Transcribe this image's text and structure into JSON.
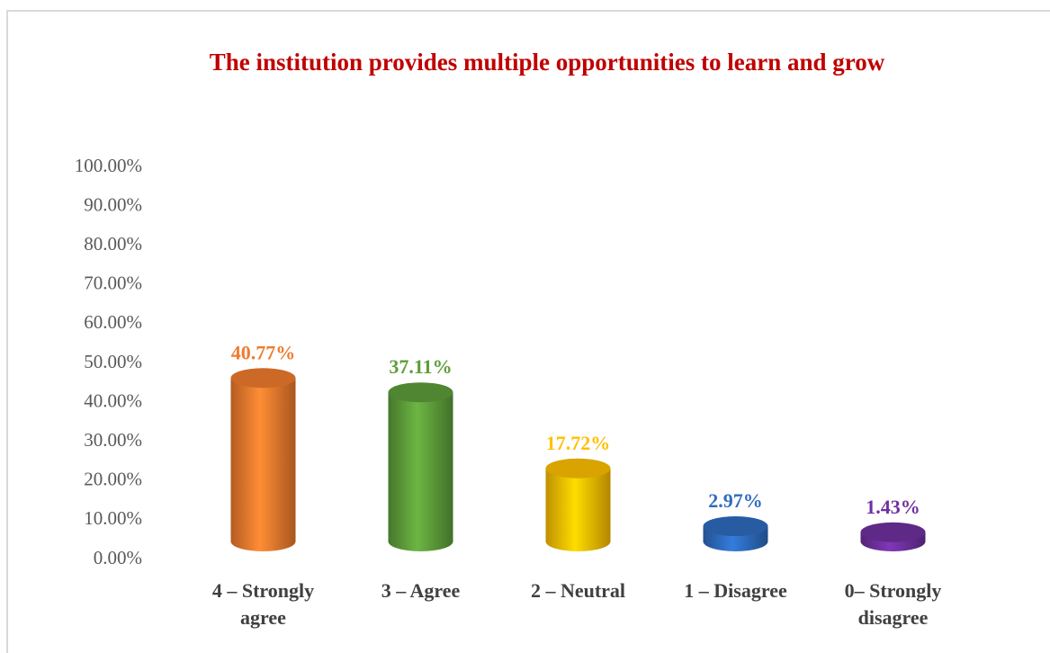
{
  "chart_data": {
    "type": "bar",
    "title": "The institution provides multiple  opportunities to learn and grow",
    "categories": [
      "4 – Strongly agree",
      "3 – Agree",
      "2 – Neutral",
      "1 – Disagree",
      "0– Strongly disagree"
    ],
    "values": [
      40.77,
      37.11,
      17.72,
      2.97,
      1.43
    ],
    "value_labels": [
      "40.77%",
      "37.11%",
      "17.72%",
      "2.97%",
      "1.43%"
    ],
    "colors": [
      "#f07b2e",
      "#5e9e3a",
      "#ffc000",
      "#2e6cc0",
      "#7030a0"
    ],
    "ylim": [
      0,
      100
    ],
    "yticks": [
      {
        "value": 0,
        "label": "0.00%"
      },
      {
        "value": 10,
        "label": "10.00%"
      },
      {
        "value": 20,
        "label": "20.00%"
      },
      {
        "value": 30,
        "label": "30.00%"
      },
      {
        "value": 40,
        "label": "40.00%"
      },
      {
        "value": 50,
        "label": "50.00%"
      },
      {
        "value": 60,
        "label": "60.00%"
      },
      {
        "value": 70,
        "label": "70.00%"
      },
      {
        "value": 80,
        "label": "80.00%"
      },
      {
        "value": 90,
        "label": "90.00%"
      },
      {
        "value": 100,
        "label": "100.00%"
      }
    ],
    "grid": false
  }
}
